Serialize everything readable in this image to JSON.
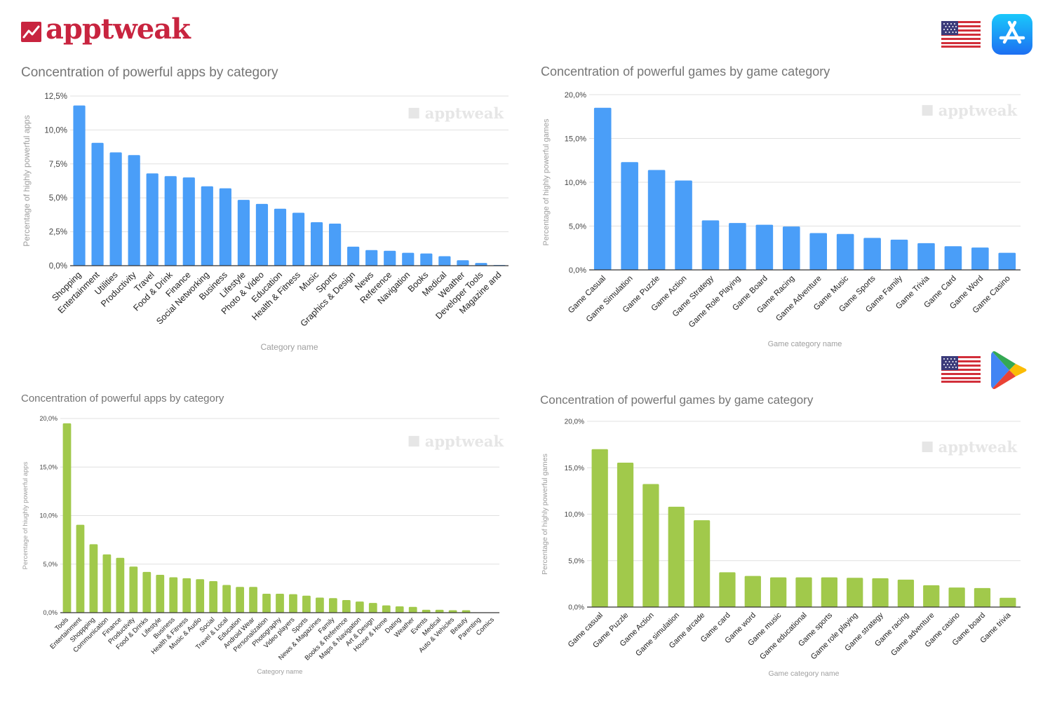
{
  "brand": {
    "name": "apptweak",
    "color": "#c8243f"
  },
  "stores": [
    {
      "country": "United States",
      "store": "App Store",
      "icon": "app-store-icon",
      "flag": "us-flag-icon"
    },
    {
      "country": "United States",
      "store": "Google Play",
      "icon": "google-play-icon",
      "flag": "us-flag-icon"
    }
  ],
  "watermark": "apptweak",
  "colors": {
    "ios": "#4a9ef8",
    "android": "#a1c94b",
    "grid": "#e0e0e0",
    "axis": "#999999"
  },
  "chart_data": [
    {
      "id": "ios-apps",
      "type": "bar",
      "store": "App Store",
      "title": "Concentration of powerful apps by category",
      "xlabel": "Category name",
      "ylabel": "Percentage of highly powerful apps",
      "ylim": [
        0,
        12.5
      ],
      "yticks": [
        "0,0%",
        "2,5%",
        "5,0%",
        "7,5%",
        "10,0%",
        "12,5%"
      ],
      "ytick_values": [
        0,
        2.5,
        5,
        7.5,
        10,
        12.5
      ],
      "grid": true,
      "categories": [
        "Shopping",
        "Entertainment",
        "Utilities",
        "Productivity",
        "Travel",
        "Food & Drink",
        "Finance",
        "Social Networking",
        "Business",
        "Lifestyle",
        "Photo & Video",
        "Education",
        "Health & Fitness",
        "Music",
        "Sports",
        "Graphics & Design",
        "News",
        "Reference",
        "Navigation",
        "Books",
        "Medical",
        "Weather",
        "Developer Tools",
        "Magazine and"
      ],
      "values": [
        11.8,
        9.05,
        8.35,
        8.15,
        6.8,
        6.6,
        6.5,
        5.85,
        5.7,
        4.85,
        4.55,
        4.2,
        3.9,
        3.2,
        3.1,
        1.4,
        1.15,
        1.1,
        0.95,
        0.9,
        0.7,
        0.4,
        0.2,
        0.05
      ]
    },
    {
      "id": "ios-games",
      "type": "bar",
      "store": "App Store",
      "title": "Concentration of powerful games by game category",
      "xlabel": "Game category name",
      "ylabel": "Percentage of highly powerful games",
      "ylim": [
        0,
        20
      ],
      "yticks": [
        "0,0%",
        "5,0%",
        "10,0%",
        "15,0%",
        "20,0%"
      ],
      "ytick_values": [
        0,
        5,
        10,
        15,
        20
      ],
      "grid": true,
      "categories": [
        "Game Casual",
        "Game Simulation",
        "Game Puzzle",
        "Game Action",
        "Game Strategy",
        "Game Role Playing",
        "Game Board",
        "Game Racing",
        "Game Adventure",
        "Game Music",
        "Game Sports",
        "Game Family",
        "Game Trivia",
        "Game Card",
        "Game Word",
        "Game Casino"
      ],
      "values": [
        18.5,
        12.3,
        11.4,
        10.2,
        5.65,
        5.35,
        5.15,
        4.95,
        4.2,
        4.1,
        3.65,
        3.45,
        3.05,
        2.7,
        2.55,
        1.95
      ]
    },
    {
      "id": "android-apps",
      "type": "bar",
      "store": "Google Play",
      "title": "Concentration of powerful apps by category",
      "xlabel": "Category name",
      "ylabel": "Percentage of hiughly powerful apps",
      "ylim": [
        0,
        20
      ],
      "yticks": [
        "0,0%",
        "5,0%",
        "10,0%",
        "15,0%",
        "20,0%"
      ],
      "ytick_values": [
        0,
        5,
        10,
        15,
        20
      ],
      "grid": true,
      "categories": [
        "Tools",
        "Entertainment",
        "Shoppping",
        "Communication",
        "Finance",
        "Productivity",
        "Food & Drinks",
        "Lifestyle",
        "Business",
        "Health & Fitness",
        "Music & Audio",
        "Social",
        "Travel & Local",
        "Education",
        "Android Wear",
        "Personalization",
        "Photography",
        "Video players",
        "Sports",
        "News & Magazines",
        "Family",
        "Books & Reference",
        "Maps & Navigation",
        "Art & Design",
        "House & Home",
        "Dating",
        "Weather",
        "Events",
        "Medical",
        "Auto & Vehicles",
        "Beauty",
        "Parenting",
        "Comics"
      ],
      "values": [
        19.5,
        9.05,
        7.05,
        6.0,
        5.65,
        4.75,
        4.2,
        3.9,
        3.65,
        3.55,
        3.45,
        3.25,
        2.85,
        2.65,
        2.65,
        1.95,
        1.95,
        1.9,
        1.75,
        1.55,
        1.5,
        1.3,
        1.15,
        1.0,
        0.75,
        0.65,
        0.6,
        0.3,
        0.3,
        0.25,
        0.25,
        0.0,
        0.0
      ]
    },
    {
      "id": "android-games",
      "type": "bar",
      "store": "Google Play",
      "title": "Concentration of powerful games by game category",
      "xlabel": "Game category name",
      "ylabel": "Percentage of highly powerful games",
      "ylim": [
        0,
        20
      ],
      "yticks": [
        "0,0%",
        "5,0%",
        "10,0%",
        "15,0%",
        "20,0%"
      ],
      "ytick_values": [
        0,
        5,
        10,
        15,
        20
      ],
      "grid": true,
      "categories": [
        "Game casual",
        "Game Puzzle",
        "Game Action",
        "Game simulation",
        "Game arcade",
        "Game card",
        "Game word",
        "Game music",
        "Game educational",
        "Game sports",
        "Game role playing",
        "Game strategy",
        "Game racing",
        "Game adventure",
        "Game casino",
        "Game board",
        "Game trivia"
      ],
      "values": [
        17.0,
        15.55,
        13.25,
        10.8,
        9.35,
        3.75,
        3.35,
        3.2,
        3.2,
        3.2,
        3.15,
        3.1,
        2.95,
        2.35,
        2.1,
        2.05,
        1.0
      ]
    }
  ]
}
